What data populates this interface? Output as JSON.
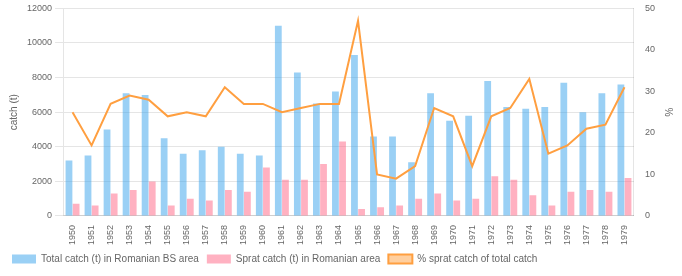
{
  "chart_data": {
    "type": "bar",
    "categories": [
      "1950",
      "1951",
      "1952",
      "1953",
      "1954",
      "1955",
      "1956",
      "1957",
      "1958",
      "1959",
      "1960",
      "1961",
      "1962",
      "1963",
      "1964",
      "1965",
      "1966",
      "1967",
      "1968",
      "1969",
      "1970",
      "1971",
      "1972",
      "1973",
      "1974",
      "1975",
      "1976",
      "1977",
      "1978",
      "1979"
    ],
    "series": [
      {
        "name": "Total catch (t) in Romanian BS area",
        "type": "bar",
        "values": [
          3200,
          3500,
          5000,
          7100,
          7000,
          4500,
          3600,
          3800,
          4000,
          3600,
          3500,
          11000,
          8300,
          6500,
          7200,
          9300,
          4600,
          4600,
          3100,
          7100,
          5500,
          5800,
          7800,
          6300,
          6200,
          6300,
          7700,
          6000,
          7100,
          7600
        ]
      },
      {
        "name": "Sprat catch (t) in Romanian area",
        "type": "bar",
        "values": [
          700,
          600,
          1300,
          1500,
          2000,
          600,
          1000,
          900,
          1500,
          1400,
          2800,
          2100,
          2100,
          3000,
          4300,
          400,
          500,
          600,
          1000,
          1300,
          900,
          1000,
          2300,
          2100,
          1200,
          600,
          1400,
          1500,
          1400,
          2200
        ]
      },
      {
        "name": "% sprat catch of total catch",
        "type": "line",
        "axis": "y2",
        "values": [
          25,
          17,
          27,
          29,
          28,
          24,
          25,
          24,
          31,
          27,
          27,
          25,
          26,
          27,
          27,
          47,
          10,
          9,
          12,
          26,
          24,
          12,
          24,
          26,
          33,
          15,
          17,
          21,
          22,
          31
        ]
      }
    ],
    "ylabel": "catch (t)",
    "y2label": "%",
    "ylim": [
      0,
      12000
    ],
    "yticks": [
      0,
      2000,
      4000,
      6000,
      8000,
      10000,
      12000
    ],
    "y2lim": [
      0,
      50
    ],
    "y2ticks": [
      0,
      10,
      20,
      30,
      40,
      50
    ],
    "grid": true,
    "legend": "bottom"
  }
}
